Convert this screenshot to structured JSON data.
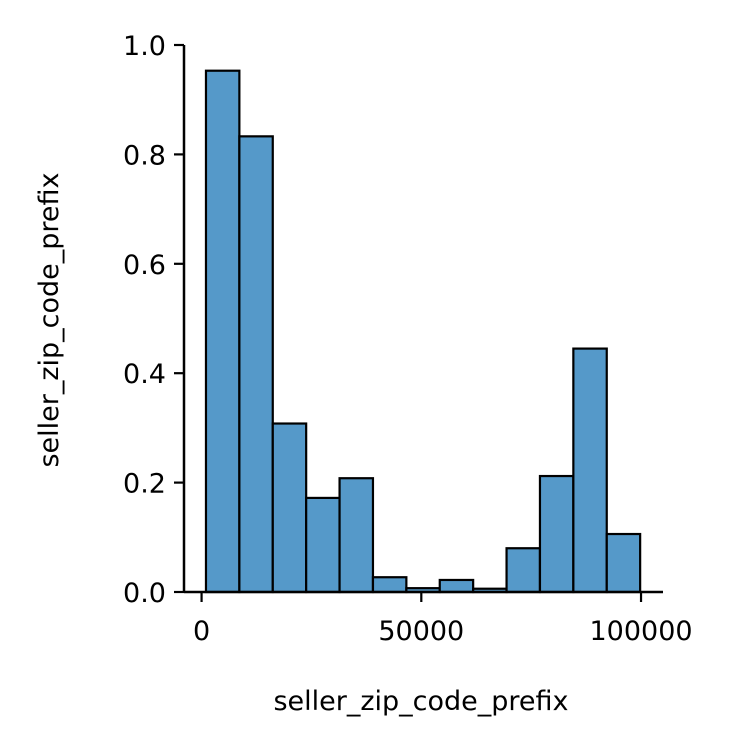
{
  "chart_data": {
    "type": "bar",
    "xlabel": "seller_zip_code_prefix",
    "ylabel": "seller_zip_code_prefix",
    "xlim": [
      -4000,
      105000
    ],
    "ylim": [
      0,
      1.0
    ],
    "x_ticks": [
      0,
      50000,
      100000
    ],
    "x_tick_labels": [
      "0",
      "50000",
      "100000"
    ],
    "y_ticks": [
      0.0,
      0.2,
      0.4,
      0.6,
      0.8,
      1.0
    ],
    "y_tick_labels": [
      "0.0",
      "0.2",
      "0.4",
      "0.6",
      "0.8",
      "1.0"
    ],
    "bins": [
      {
        "x0": 1000,
        "x1": 8600,
        "value": 0.953
      },
      {
        "x0": 8600,
        "x1": 16200,
        "value": 0.833
      },
      {
        "x0": 16200,
        "x1": 23800,
        "value": 0.308
      },
      {
        "x0": 23800,
        "x1": 31400,
        "value": 0.172
      },
      {
        "x0": 31400,
        "x1": 39000,
        "value": 0.208
      },
      {
        "x0": 39000,
        "x1": 46600,
        "value": 0.027
      },
      {
        "x0": 46600,
        "x1": 54200,
        "value": 0.007
      },
      {
        "x0": 54200,
        "x1": 61800,
        "value": 0.022
      },
      {
        "x0": 61800,
        "x1": 69400,
        "value": 0.006
      },
      {
        "x0": 69400,
        "x1": 77000,
        "value": 0.08
      },
      {
        "x0": 77000,
        "x1": 84600,
        "value": 0.212
      },
      {
        "x0": 84600,
        "x1": 92200,
        "value": 0.445
      },
      {
        "x0": 92200,
        "x1": 99800,
        "value": 0.106
      }
    ],
    "bar_color": "#5599c9",
    "edge_color": "#000000",
    "grid": false
  }
}
